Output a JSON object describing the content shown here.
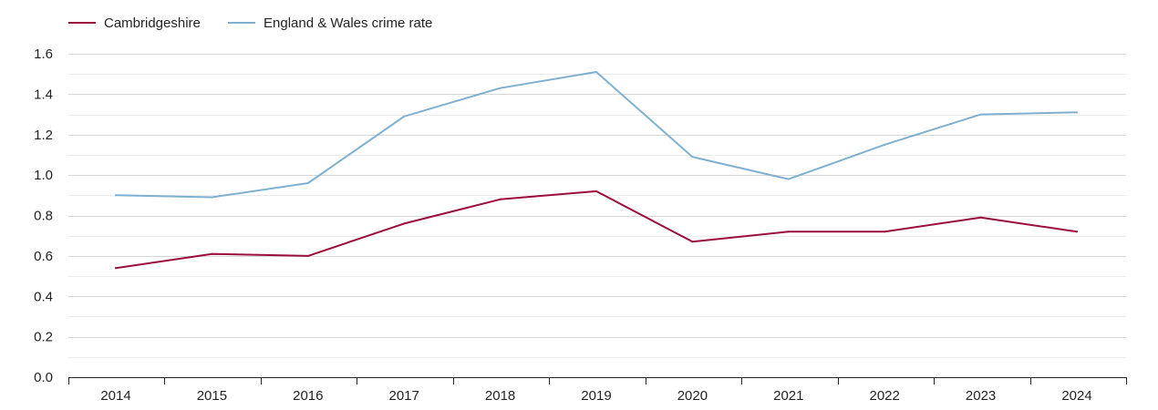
{
  "chart_data": {
    "type": "line",
    "categories": [
      "2014",
      "2015",
      "2016",
      "2017",
      "2018",
      "2019",
      "2020",
      "2021",
      "2022",
      "2023",
      "2024"
    ],
    "series": [
      {
        "name": "Cambridgeshire",
        "color": "#9b0d3a",
        "values": [
          0.54,
          0.61,
          0.6,
          0.76,
          0.88,
          0.92,
          0.67,
          0.72,
          0.72,
          0.79,
          0.72
        ]
      },
      {
        "name": "England & Wales crime rate",
        "color": "#7fb0d0",
        "values": [
          0.9,
          0.89,
          0.96,
          1.29,
          1.43,
          1.51,
          1.09,
          0.98,
          1.15,
          1.3,
          1.31
        ]
      }
    ],
    "yticks": [
      "0.0",
      "0.2",
      "0.4",
      "0.6",
      "0.8",
      "1.0",
      "1.2",
      "1.4",
      "1.6"
    ],
    "ylim": [
      0,
      1.6
    ],
    "grid": true,
    "legend": "top-left"
  }
}
